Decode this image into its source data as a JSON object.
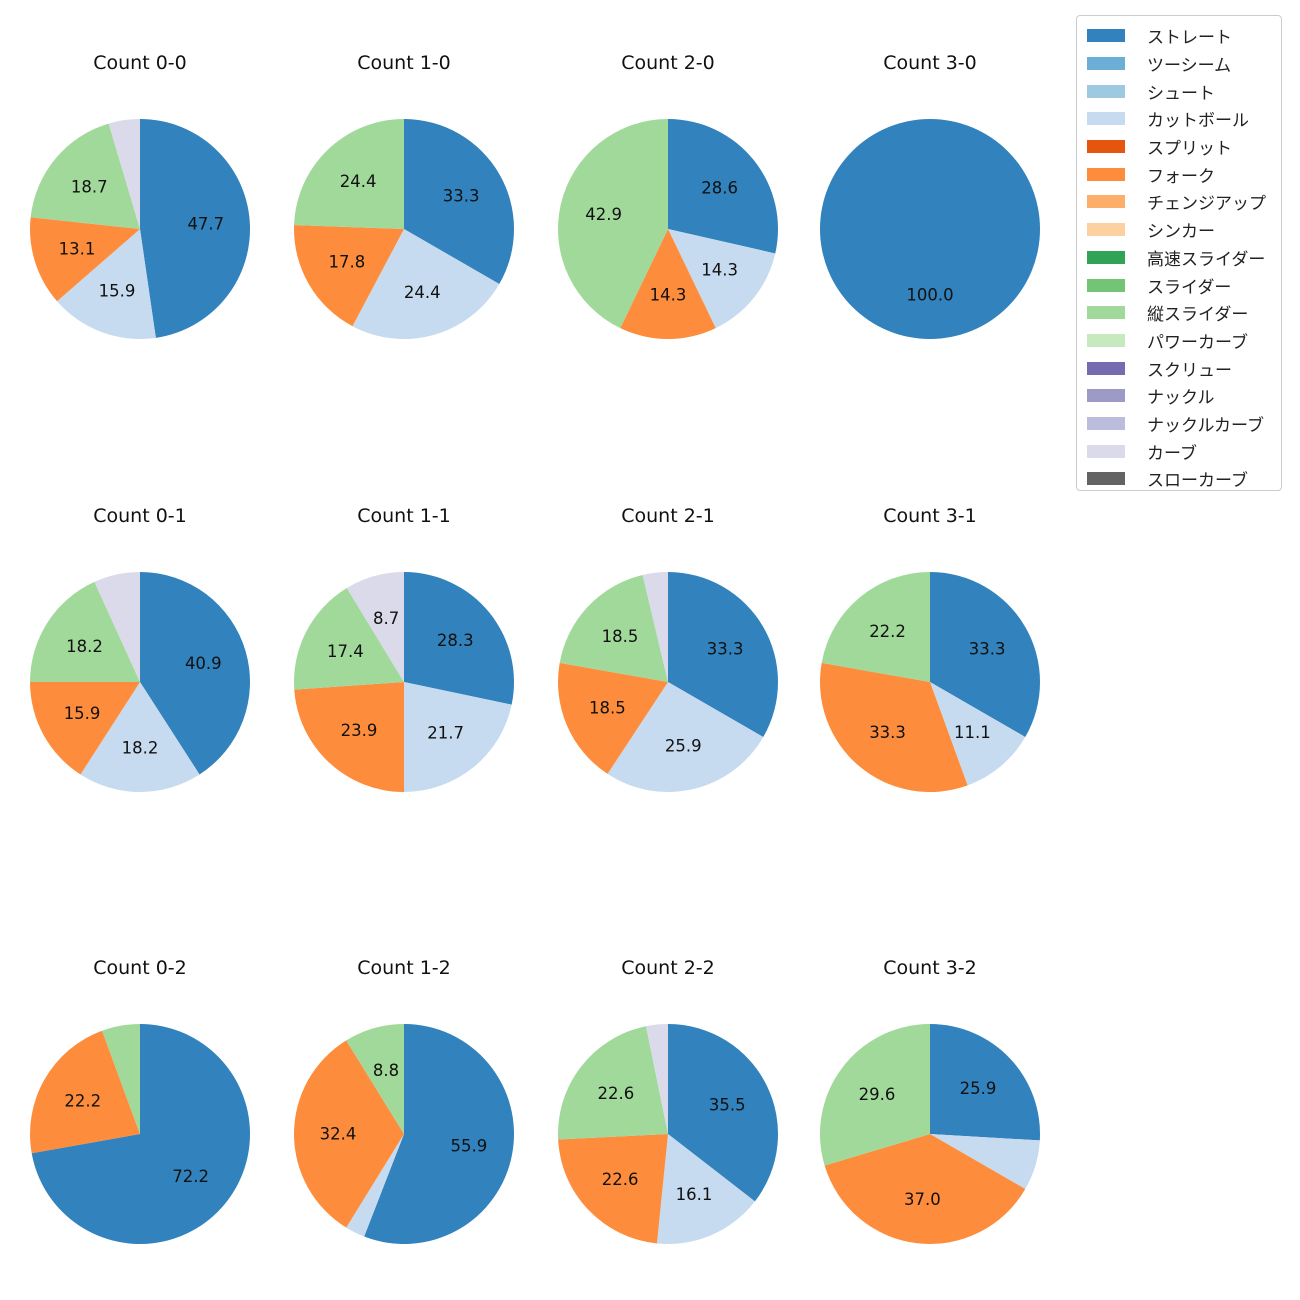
{
  "legend": {
    "items": [
      {
        "label": "ストレート",
        "color": "#3182bd"
      },
      {
        "label": "ツーシーム",
        "color": "#6baed6"
      },
      {
        "label": "シュート",
        "color": "#9ecae1"
      },
      {
        "label": "カットボール",
        "color": "#c6dbef"
      },
      {
        "label": "スプリット",
        "color": "#e6550d"
      },
      {
        "label": "フォーク",
        "color": "#fd8d3c"
      },
      {
        "label": "チェンジアップ",
        "color": "#fdae6b"
      },
      {
        "label": "シンカー",
        "color": "#fdd0a2"
      },
      {
        "label": "高速スライダー",
        "color": "#31a354"
      },
      {
        "label": "スライダー",
        "color": "#74c476"
      },
      {
        "label": "縦スライダー",
        "color": "#a1d99b"
      },
      {
        "label": "パワーカーブ",
        "color": "#c7e9c0"
      },
      {
        "label": "スクリュー",
        "color": "#756bb1"
      },
      {
        "label": "ナックル",
        "color": "#9e9ac8"
      },
      {
        "label": "ナックルカーブ",
        "color": "#bcbddc"
      },
      {
        "label": "カーブ",
        "color": "#dadaeb"
      },
      {
        "label": "スローカーブ",
        "color": "#636363"
      }
    ]
  },
  "chart_data": [
    {
      "type": "pie",
      "title": "Count 0-0",
      "slices": [
        {
          "category": "ストレート",
          "value": 47.7,
          "label": "47.7"
        },
        {
          "category": "カットボール",
          "value": 15.9,
          "label": "15.9"
        },
        {
          "category": "フォーク",
          "value": 13.1,
          "label": "13.1"
        },
        {
          "category": "縦スライダー",
          "value": 18.7,
          "label": "18.7"
        },
        {
          "category": "カーブ",
          "value": 4.6,
          "label": ""
        }
      ]
    },
    {
      "type": "pie",
      "title": "Count 1-0",
      "slices": [
        {
          "category": "ストレート",
          "value": 33.3,
          "label": "33.3"
        },
        {
          "category": "カットボール",
          "value": 24.4,
          "label": "24.4"
        },
        {
          "category": "フォーク",
          "value": 17.8,
          "label": "17.8"
        },
        {
          "category": "縦スライダー",
          "value": 24.4,
          "label": "24.4"
        }
      ]
    },
    {
      "type": "pie",
      "title": "Count 2-0",
      "slices": [
        {
          "category": "ストレート",
          "value": 28.6,
          "label": "28.6"
        },
        {
          "category": "カットボール",
          "value": 14.3,
          "label": "14.3"
        },
        {
          "category": "フォーク",
          "value": 14.3,
          "label": "14.3"
        },
        {
          "category": "縦スライダー",
          "value": 42.9,
          "label": "42.9"
        }
      ]
    },
    {
      "type": "pie",
      "title": "Count 3-0",
      "slices": [
        {
          "category": "ストレート",
          "value": 100.0,
          "label": "100.0"
        }
      ]
    },
    {
      "type": "pie",
      "title": "Count 0-1",
      "slices": [
        {
          "category": "ストレート",
          "value": 40.9,
          "label": "40.9"
        },
        {
          "category": "カットボール",
          "value": 18.2,
          "label": "18.2"
        },
        {
          "category": "フォーク",
          "value": 15.9,
          "label": "15.9"
        },
        {
          "category": "縦スライダー",
          "value": 18.2,
          "label": "18.2"
        },
        {
          "category": "カーブ",
          "value": 6.8,
          "label": ""
        }
      ]
    },
    {
      "type": "pie",
      "title": "Count 1-1",
      "slices": [
        {
          "category": "ストレート",
          "value": 28.3,
          "label": "28.3"
        },
        {
          "category": "カットボール",
          "value": 21.7,
          "label": "21.7"
        },
        {
          "category": "フォーク",
          "value": 23.9,
          "label": "23.9"
        },
        {
          "category": "縦スライダー",
          "value": 17.4,
          "label": "17.4"
        },
        {
          "category": "カーブ",
          "value": 8.7,
          "label": "8.7"
        }
      ]
    },
    {
      "type": "pie",
      "title": "Count 2-1",
      "slices": [
        {
          "category": "ストレート",
          "value": 33.3,
          "label": "33.3"
        },
        {
          "category": "カットボール",
          "value": 25.9,
          "label": "25.9"
        },
        {
          "category": "フォーク",
          "value": 18.5,
          "label": "18.5"
        },
        {
          "category": "縦スライダー",
          "value": 18.5,
          "label": "18.5"
        },
        {
          "category": "カーブ",
          "value": 3.7,
          "label": ""
        }
      ]
    },
    {
      "type": "pie",
      "title": "Count 3-1",
      "slices": [
        {
          "category": "ストレート",
          "value": 33.3,
          "label": "33.3"
        },
        {
          "category": "カットボール",
          "value": 11.1,
          "label": "11.1"
        },
        {
          "category": "フォーク",
          "value": 33.3,
          "label": "33.3"
        },
        {
          "category": "縦スライダー",
          "value": 22.2,
          "label": "22.2"
        }
      ]
    },
    {
      "type": "pie",
      "title": "Count 0-2",
      "slices": [
        {
          "category": "ストレート",
          "value": 72.2,
          "label": "72.2"
        },
        {
          "category": "フォーク",
          "value": 22.2,
          "label": "22.2"
        },
        {
          "category": "縦スライダー",
          "value": 5.6,
          "label": ""
        }
      ]
    },
    {
      "type": "pie",
      "title": "Count 1-2",
      "slices": [
        {
          "category": "ストレート",
          "value": 55.9,
          "label": "55.9"
        },
        {
          "category": "カットボール",
          "value": 2.9,
          "label": ""
        },
        {
          "category": "フォーク",
          "value": 32.4,
          "label": "32.4"
        },
        {
          "category": "縦スライダー",
          "value": 8.8,
          "label": "8.8"
        }
      ]
    },
    {
      "type": "pie",
      "title": "Count 2-2",
      "slices": [
        {
          "category": "ストレート",
          "value": 35.5,
          "label": "35.5"
        },
        {
          "category": "カットボール",
          "value": 16.1,
          "label": "16.1"
        },
        {
          "category": "フォーク",
          "value": 22.6,
          "label": "22.6"
        },
        {
          "category": "縦スライダー",
          "value": 22.6,
          "label": "22.6"
        },
        {
          "category": "カーブ",
          "value": 3.2,
          "label": ""
        }
      ]
    },
    {
      "type": "pie",
      "title": "Count 3-2",
      "slices": [
        {
          "category": "ストレート",
          "value": 25.9,
          "label": "25.9"
        },
        {
          "category": "カットボール",
          "value": 7.4,
          "label": ""
        },
        {
          "category": "フォーク",
          "value": 37.0,
          "label": "37.0"
        },
        {
          "category": "縦スライダー",
          "value": 29.6,
          "label": "29.6"
        }
      ]
    }
  ]
}
